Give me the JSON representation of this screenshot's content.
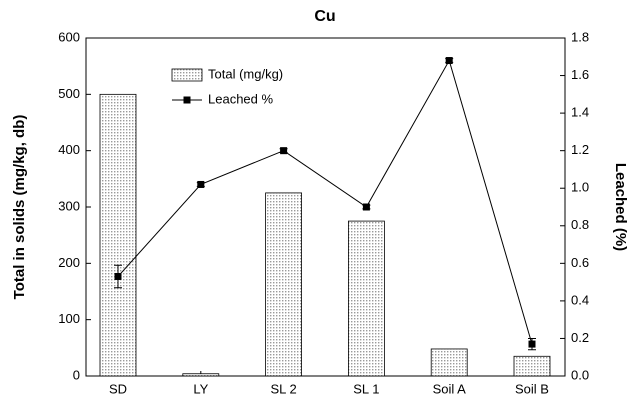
{
  "chart_data": {
    "type": "bar-line",
    "title": "Cu",
    "categories": [
      "SD",
      "LY",
      "SL 2",
      "SL 1",
      "Soil A",
      "Soil B"
    ],
    "series": [
      {
        "name": "Total (mg/kg)",
        "type": "bar",
        "color": "#9a9a9a",
        "values": [
          500,
          4,
          325,
          275,
          48,
          35
        ]
      },
      {
        "name": "Leached %",
        "type": "line",
        "axis": "y2",
        "color": "#000000",
        "values": [
          0.53,
          1.02,
          1.2,
          0.9,
          1.68,
          0.17
        ],
        "errors": [
          0.06,
          0.01,
          0.01,
          0.01,
          0.01,
          0.03
        ]
      }
    ],
    "ylabel": "Total in solids (mg/kg, db)",
    "y2label": "Leached (%)",
    "ylim": [
      0,
      600
    ],
    "yticks": [
      0,
      100,
      200,
      300,
      400,
      500,
      600
    ],
    "y2lim": [
      0,
      1.8
    ],
    "y2ticks": [
      {
        "value": 0,
        "label": "0.0"
      },
      {
        "value": 0.2,
        "label": "0.2"
      },
      {
        "value": 0.4,
        "label": "0.4"
      },
      {
        "value": 0.6,
        "label": "0.6"
      },
      {
        "value": 0.8,
        "label": "0.8"
      },
      {
        "value": 1,
        "label": "1.0"
      },
      {
        "value": 1.2,
        "label": "1.2"
      },
      {
        "value": 1.4,
        "label": "1.4"
      },
      {
        "value": 1.6,
        "label": "1.6"
      },
      {
        "value": 1.8,
        "label": "1.8"
      }
    ],
    "legend": "upper left",
    "grid": false
  }
}
